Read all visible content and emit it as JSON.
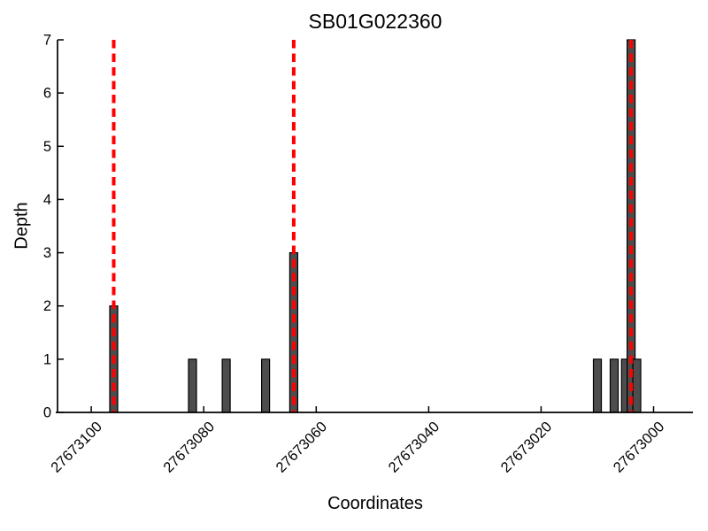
{
  "chart_data": {
    "type": "bar",
    "title": "SB01G022360",
    "xlabel": "Coordinates",
    "ylabel": "Depth",
    "x_axis_reversed": true,
    "xlim": [
      27673106,
      27672993
    ],
    "ylim": [
      0,
      7
    ],
    "x_ticks": [
      27673100,
      27673080,
      27673060,
      27673040,
      27673020,
      27673000
    ],
    "x_tick_labels": [
      "27673100",
      "27673080",
      "27673060",
      "27673040",
      "27673020",
      "27673000"
    ],
    "y_ticks": [
      0,
      1,
      2,
      3,
      4,
      5,
      6,
      7
    ],
    "y_tick_labels": [
      "0",
      "1",
      "2",
      "3",
      "4",
      "5",
      "6",
      "7"
    ],
    "grid": false,
    "legend": null,
    "bars": [
      {
        "coordinate": 27673096,
        "depth": 2
      },
      {
        "coordinate": 27673082,
        "depth": 1
      },
      {
        "coordinate": 27673076,
        "depth": 1
      },
      {
        "coordinate": 27673069,
        "depth": 1
      },
      {
        "coordinate": 27673064,
        "depth": 3
      },
      {
        "coordinate": 27673010,
        "depth": 1
      },
      {
        "coordinate": 27673007,
        "depth": 1
      },
      {
        "coordinate": 27673005,
        "depth": 1
      },
      {
        "coordinate": 27673004,
        "depth": 7
      },
      {
        "coordinate": 27673003,
        "depth": 1
      }
    ],
    "marker_lines": [
      {
        "coordinate": 27673096,
        "style": "dashed"
      },
      {
        "coordinate": 27673064,
        "style": "dashed"
      },
      {
        "coordinate": 27673004,
        "style": "dashed"
      }
    ],
    "colors": {
      "bar_fill": "#4d4d4d",
      "bar_edge": "#000000",
      "marker_line": "#ff0000",
      "axis": "#000000",
      "background": "#ffffff"
    }
  }
}
